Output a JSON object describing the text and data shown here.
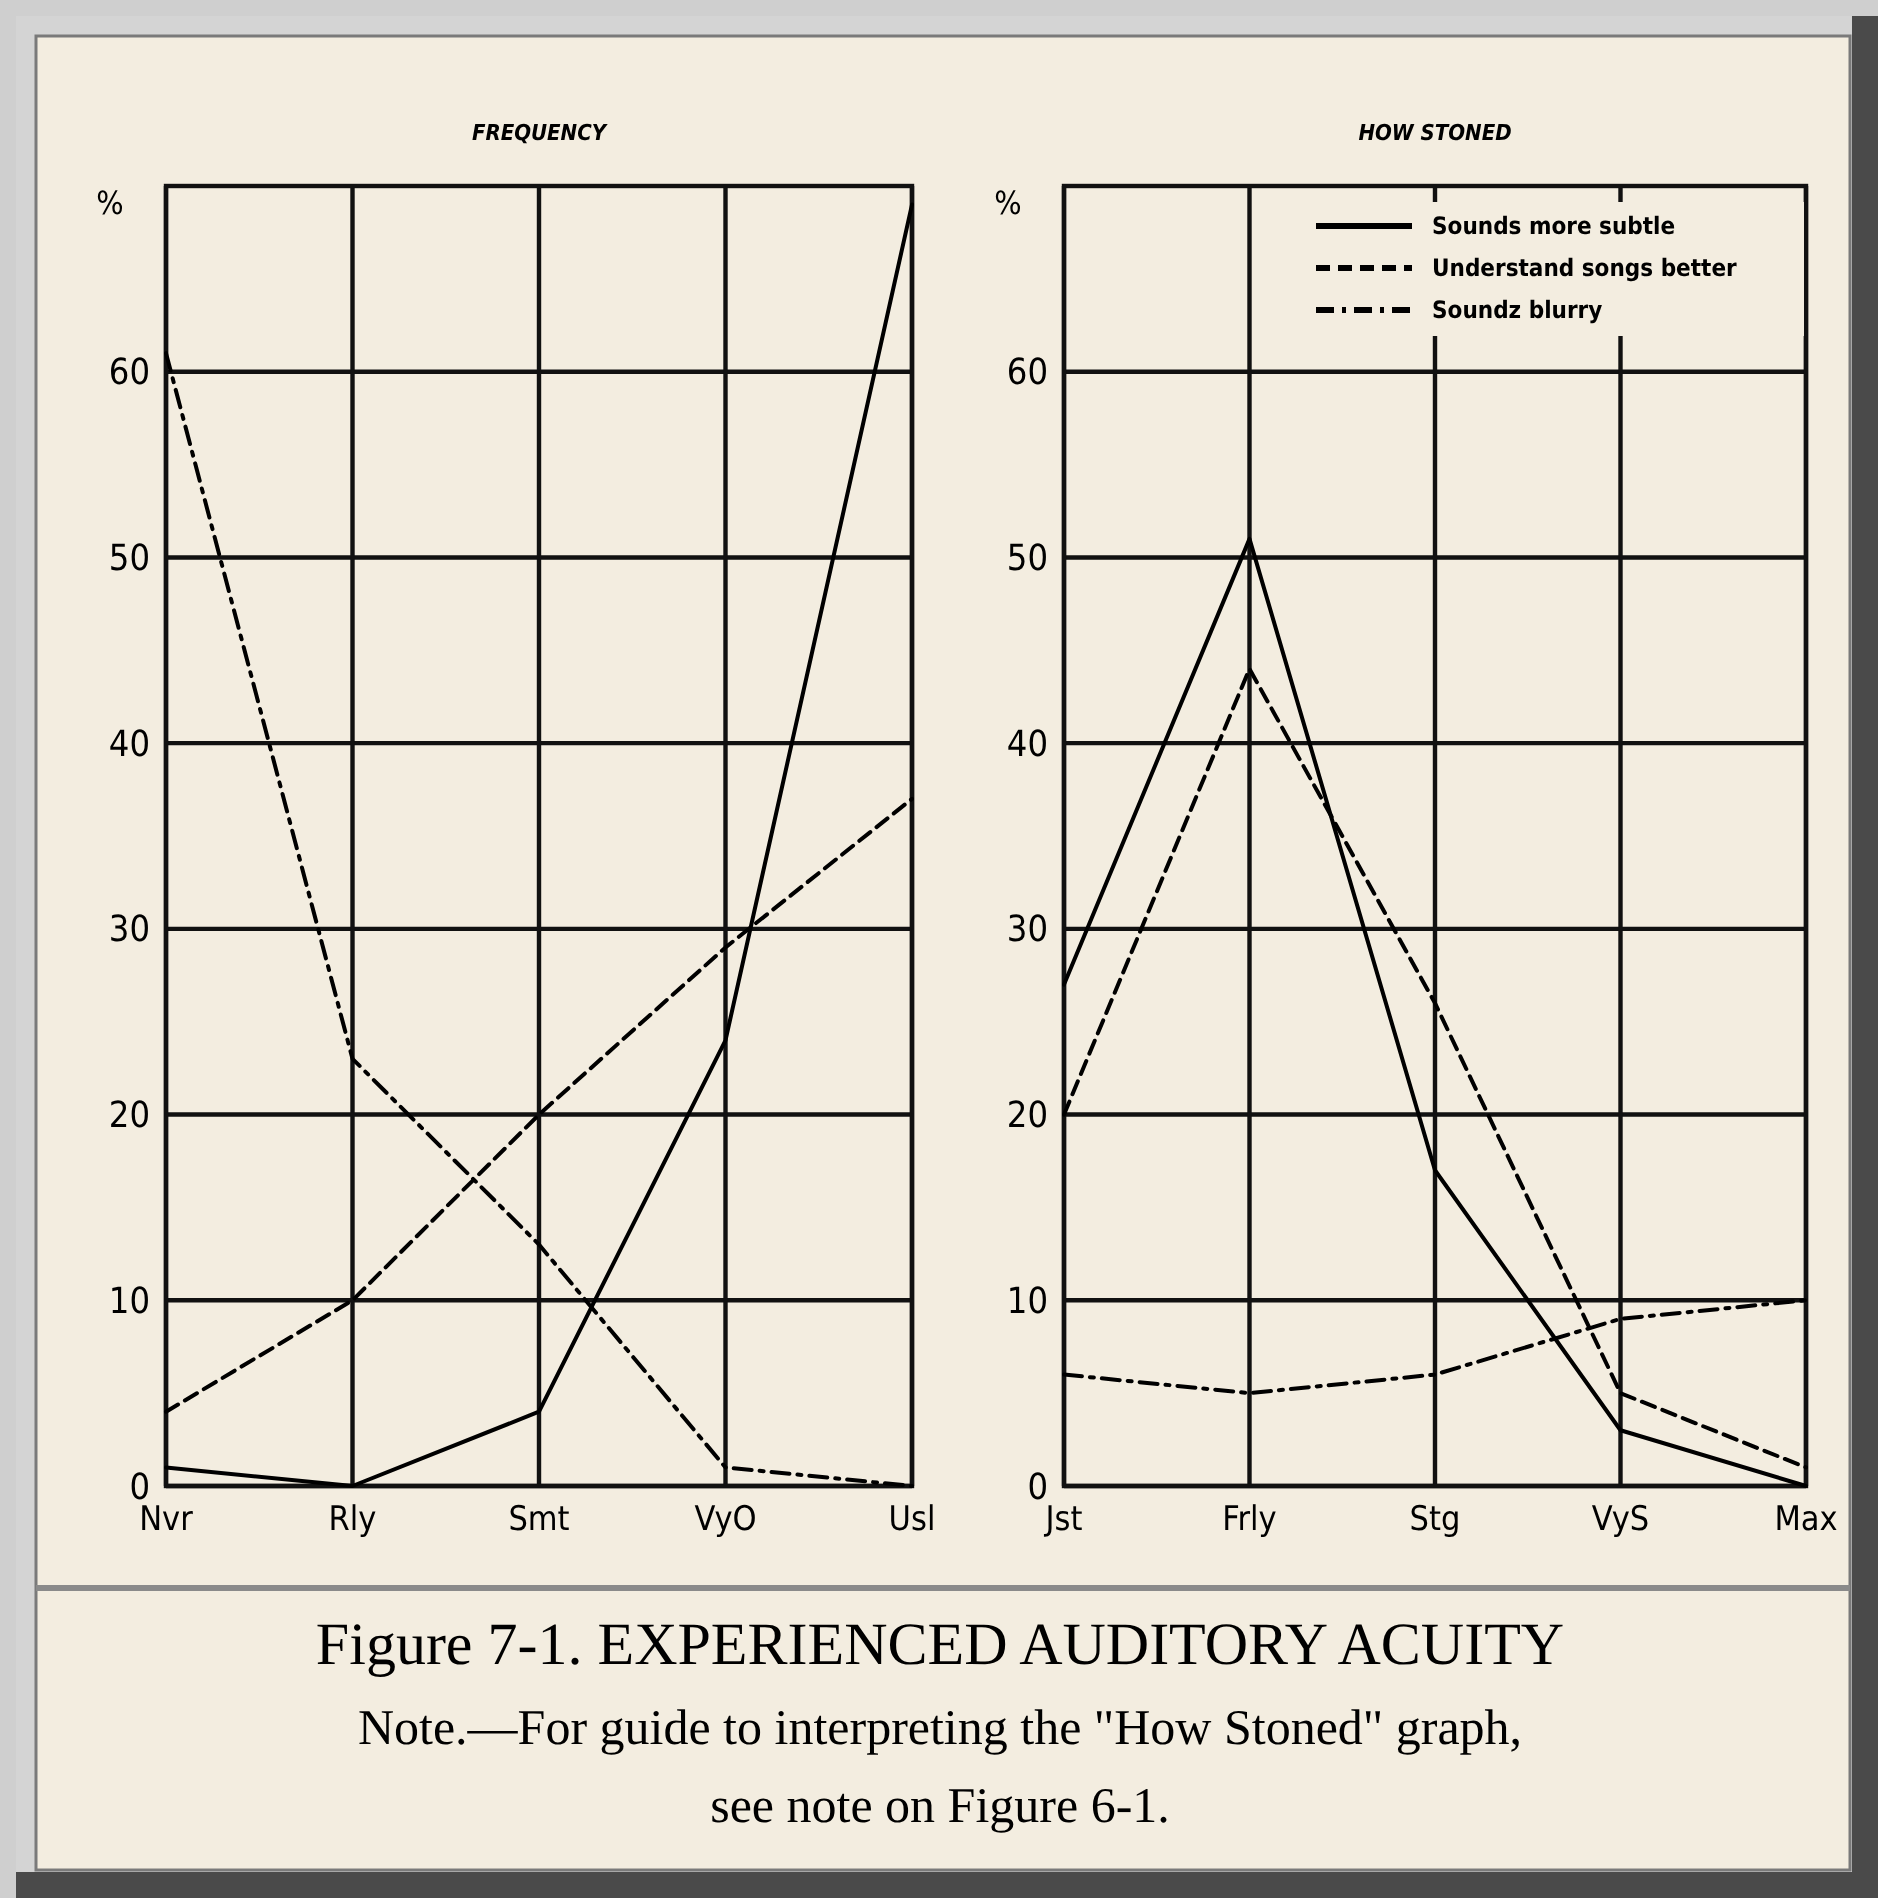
{
  "chart_data": [
    {
      "type": "line",
      "title": "FREQUENCY",
      "ylabel": "%",
      "categories": [
        "Nvr",
        "Rly",
        "Smt",
        "VyO",
        "Usl"
      ],
      "ylim": [
        0,
        70
      ],
      "yticks": [
        0,
        10,
        20,
        30,
        40,
        50,
        60
      ],
      "grid": true,
      "legend": false,
      "series": [
        {
          "color": "#000000",
          "line_style": "solid",
          "values": [
            1,
            0,
            4,
            24,
            69
          ]
        },
        {
          "color": "#000000",
          "line_style": "dashed",
          "values": [
            4,
            10,
            20,
            29,
            37
          ]
        },
        {
          "color": "#000000",
          "line_style": "dashdot",
          "values": [
            61,
            23,
            13,
            1,
            0
          ]
        }
      ]
    },
    {
      "type": "line",
      "title": "HOW STONED",
      "ylabel": "%",
      "categories": [
        "Jst",
        "Frly",
        "Stg",
        "VyS",
        "Max"
      ],
      "ylim": [
        0,
        70
      ],
      "yticks": [
        0,
        10,
        20,
        30,
        40,
        50,
        60
      ],
      "grid": true,
      "legend": "top right",
      "annotations": [
        "Figure 7-1. EXPERIENCED AUDITORY ACUITY",
        "Note.—For guide to interpreting the \"How Stoned\" graph,",
        "see note on Figure 6-1."
      ],
      "series": [
        {
          "name": "Sounds more subtle",
          "color": "#000000",
          "line_style": "solid",
          "values": [
            27,
            51,
            17,
            3,
            0
          ]
        },
        {
          "name": "Understand songs better",
          "color": "#000000",
          "line_style": "dashed",
          "values": [
            20,
            44,
            26,
            5,
            1
          ]
        },
        {
          "name": "Soundz blurry",
          "color": "#000000",
          "line_style": "dashdot",
          "values": [
            6,
            5,
            6,
            9,
            10
          ]
        }
      ]
    }
  ]
}
